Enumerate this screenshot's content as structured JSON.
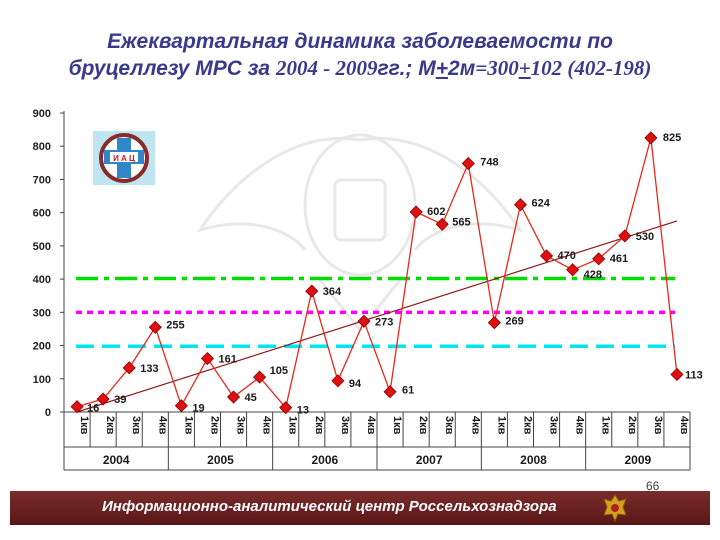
{
  "title": {
    "line1": "Ежеквартальная динамика заболеваемости по",
    "line2_a": "бруцеллезу МРС за ",
    "line2_years": "2004 - 2009",
    "line2_b": "гг.; М",
    "line2_pm1": "+",
    "line2_c": "2м",
    "line2_d": "=300",
    "line2_pm2": "+",
    "line2_e": "102 (402-198)"
  },
  "logo": {
    "text": "И А Ц"
  },
  "footer": {
    "text": "Информационно-аналитический центр Россельхознадзора"
  },
  "page_number": "66",
  "colors": {
    "line": "#e8281e",
    "marker": "#e01010",
    "marker_border": "#8a0000",
    "trend": "#8b1a1a",
    "mean_line": "#ff00ff",
    "upper_line": "#00dd00",
    "lower_line": "#00e5ee",
    "title": "#3a3a8c",
    "footer_bg": "#6b1e1e"
  },
  "chart_data": {
    "type": "line",
    "ylim": [
      0,
      900
    ],
    "yticks": [
      "0",
      "100",
      "200",
      "300",
      "400",
      "500",
      "600",
      "700",
      "800",
      "900"
    ],
    "categories": [
      "1кв",
      "2кв",
      "3кв",
      "4кв",
      "1кв",
      "2кв",
      "3кв",
      "4кв",
      "1кв",
      "2кв",
      "3кв",
      "4кв",
      "1кв",
      "2кв",
      "3кв",
      "4кв",
      "1кв",
      "2кв",
      "3кв",
      "4кв",
      "1кв",
      "2кв",
      "3кв",
      "4кв"
    ],
    "years": [
      "2004",
      "2005",
      "2006",
      "2007",
      "2008",
      "2009"
    ],
    "series": [
      {
        "values": [
          16,
          39,
          133,
          255,
          19,
          161,
          45,
          105,
          13,
          364,
          94,
          273,
          61,
          602,
          565,
          748,
          269,
          624,
          470,
          428,
          461,
          530,
          825,
          113
        ]
      }
    ],
    "labels": [
      "16",
      "39",
      "133",
      "255",
      "19",
      "161",
      "45",
      "105",
      "13",
      "364",
      "94",
      "273",
      "61",
      "602",
      "565",
      "748",
      "269",
      "624",
      "470",
      "428",
      "461",
      "530",
      "825",
      "113"
    ],
    "reference_lines": [
      {
        "value": 402,
        "style": "dash-dot",
        "color": "#00dd00"
      },
      {
        "value": 300,
        "style": "dotted",
        "color": "#ff00ff"
      },
      {
        "value": 198,
        "style": "dashed",
        "color": "#00e5ee"
      }
    ],
    "trend": {
      "start": 0,
      "end": 575
    },
    "grid": false
  }
}
